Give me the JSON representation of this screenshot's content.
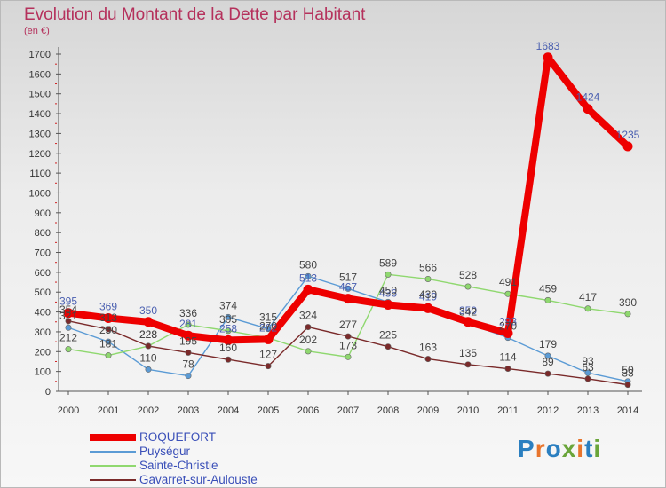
{
  "title": "Evolution du Montant de la Dette par Habitant",
  "subtitle": "(en €)",
  "logo": {
    "text": "Proxiti",
    "colors": [
      "#2b7fc0",
      "#e8752d",
      "#2b7fc0",
      "#6aa53a",
      "#e8752d",
      "#2b7fc0",
      "#6aa53a"
    ]
  },
  "chart_data": {
    "type": "line",
    "x": [
      "2000",
      "2001",
      "2002",
      "2003",
      "2004",
      "2005",
      "2006",
      "2007",
      "2008",
      "2009",
      "2010",
      "2011",
      "2012",
      "2013",
      "2014"
    ],
    "ylim": [
      0,
      1700
    ],
    "yticks": [
      0,
      100,
      200,
      300,
      400,
      500,
      600,
      700,
      800,
      900,
      1000,
      1100,
      1200,
      1300,
      1400,
      1500,
      1600,
      1700
    ],
    "grid": false,
    "series": [
      {
        "name": "ROQUEFORT",
        "color": "#ee0000",
        "label_color": "#4a5fb0",
        "values": [
          395,
          369,
          350,
          281,
          258,
          262,
          513,
          467,
          436,
          419,
          350,
          293,
          1683,
          1424,
          1235
        ]
      },
      {
        "name": "Puységur",
        "color": "#5b9bd5",
        "label_color": "#444444",
        "values": [
          321,
          250,
          110,
          78,
          374,
          315,
          580,
          517,
          450,
          430,
          342,
          270,
          179,
          93,
          50
        ]
      },
      {
        "name": "Sainte-Christie",
        "color": "#8fd86f",
        "label_color": "#444444",
        "values": [
          212,
          181,
          228,
          336,
          305,
          270,
          202,
          173,
          589,
          566,
          528,
          491,
          459,
          417,
          390
        ]
      },
      {
        "name": "Gavarret-sur-Aulouste",
        "color": "#7a2a2a",
        "label_color": "#444444",
        "values": [
          354,
          313,
          228,
          195,
          160,
          127,
          324,
          277,
          225,
          163,
          135,
          114,
          89,
          63,
          33
        ]
      }
    ],
    "data_labels": [
      {
        "series": 0,
        "points": [
          [
            0,
            "395"
          ],
          [
            1,
            "369"
          ],
          [
            2,
            "350"
          ],
          [
            3,
            "281"
          ],
          [
            4,
            "258"
          ],
          [
            5,
            "262"
          ],
          [
            6,
            "513"
          ],
          [
            7,
            "467"
          ],
          [
            8,
            "436"
          ],
          [
            9,
            "419"
          ],
          [
            10,
            "350"
          ],
          [
            11,
            "293"
          ],
          [
            12,
            "1683"
          ],
          [
            13,
            "1424"
          ],
          [
            14,
            "1235"
          ]
        ]
      },
      {
        "series": 1,
        "points": [
          [
            0,
            "321"
          ],
          [
            1,
            "250"
          ],
          [
            2,
            "110"
          ],
          [
            3,
            "78"
          ],
          [
            4,
            "374"
          ],
          [
            5,
            "315"
          ],
          [
            6,
            "580"
          ],
          [
            7,
            "517"
          ],
          [
            8,
            "450"
          ],
          [
            9,
            "430"
          ],
          [
            10,
            "342"
          ],
          [
            11,
            "270"
          ],
          [
            12,
            "179"
          ],
          [
            13,
            "93"
          ],
          [
            14,
            "50"
          ]
        ]
      },
      {
        "series": 2,
        "points": [
          [
            0,
            "212"
          ],
          [
            1,
            "181"
          ],
          [
            2,
            "228"
          ],
          [
            3,
            "336"
          ],
          [
            4,
            "305"
          ],
          [
            5,
            "270"
          ],
          [
            6,
            "202"
          ],
          [
            7,
            "173"
          ],
          [
            8,
            "589"
          ],
          [
            9,
            "566"
          ],
          [
            10,
            "528"
          ],
          [
            11,
            "491"
          ],
          [
            12,
            "459"
          ],
          [
            13,
            "417"
          ],
          [
            14,
            "390"
          ]
        ]
      },
      {
        "series": 3,
        "points": [
          [
            0,
            "354"
          ],
          [
            1,
            "313"
          ],
          [
            2,
            "228"
          ],
          [
            3,
            "195"
          ],
          [
            4,
            "160"
          ],
          [
            5,
            "127"
          ],
          [
            6,
            "324"
          ],
          [
            7,
            "277"
          ],
          [
            8,
            "225"
          ],
          [
            9,
            "163"
          ],
          [
            10,
            "135"
          ],
          [
            11,
            "114"
          ],
          [
            12,
            "89"
          ],
          [
            13,
            "63"
          ],
          [
            14,
            "33"
          ]
        ]
      }
    ],
    "legend_position": "bottom-left"
  }
}
